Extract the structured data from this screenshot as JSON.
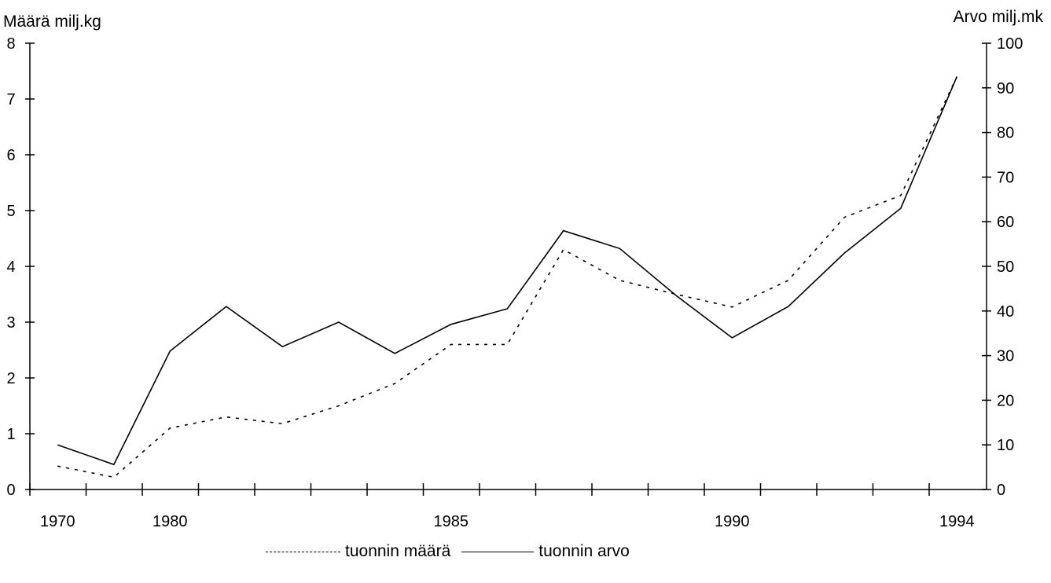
{
  "chart_data": {
    "type": "line",
    "title": "",
    "ylabel_left": "Määrä milj.kg",
    "ylabel_right": "Arvo milj.mk",
    "xlim": [
      1970,
      1994
    ],
    "x_tick_labels": [
      {
        "x": 1970,
        "label": "1970"
      },
      {
        "x": 1980,
        "label": "1980"
      },
      {
        "x": 1985,
        "label": "1985"
      },
      {
        "x": 1990,
        "label": "1990"
      },
      {
        "x": 1994,
        "label": "1994"
      }
    ],
    "ylim_left": [
      0,
      8
    ],
    "yticks_left": [
      0,
      1,
      2,
      3,
      4,
      5,
      6,
      7,
      8
    ],
    "ylim_right": [
      0,
      100
    ],
    "yticks_right": [
      0,
      10,
      20,
      30,
      40,
      50,
      60,
      70,
      80,
      90,
      100
    ],
    "legend_position": "bottom-center",
    "grid": false,
    "series": [
      {
        "name": "tuonnin määrä",
        "axis": "left",
        "style": "dotted",
        "x": [
          1970,
          1971,
          1980,
          1981,
          1982,
          1983,
          1984,
          1985,
          1986,
          1987,
          1988,
          1989,
          1990,
          1991,
          1992,
          1993,
          1994
        ],
        "values": [
          0.42,
          0.22,
          1.1,
          1.3,
          1.18,
          1.5,
          1.9,
          2.6,
          2.6,
          4.3,
          3.75,
          3.5,
          3.27,
          3.75,
          4.88,
          5.27,
          7.4
        ]
      },
      {
        "name": "tuonnin arvo",
        "axis": "right",
        "style": "solid",
        "x": [
          1970,
          1971,
          1980,
          1981,
          1982,
          1983,
          1984,
          1985,
          1986,
          1987,
          1988,
          1989,
          1990,
          1991,
          1992,
          1993,
          1994
        ],
        "values": [
          10,
          5.6,
          31,
          41,
          32,
          37.5,
          30.5,
          37,
          40.5,
          58,
          54,
          43.5,
          34,
          41,
          53,
          63,
          92.5
        ]
      }
    ]
  }
}
